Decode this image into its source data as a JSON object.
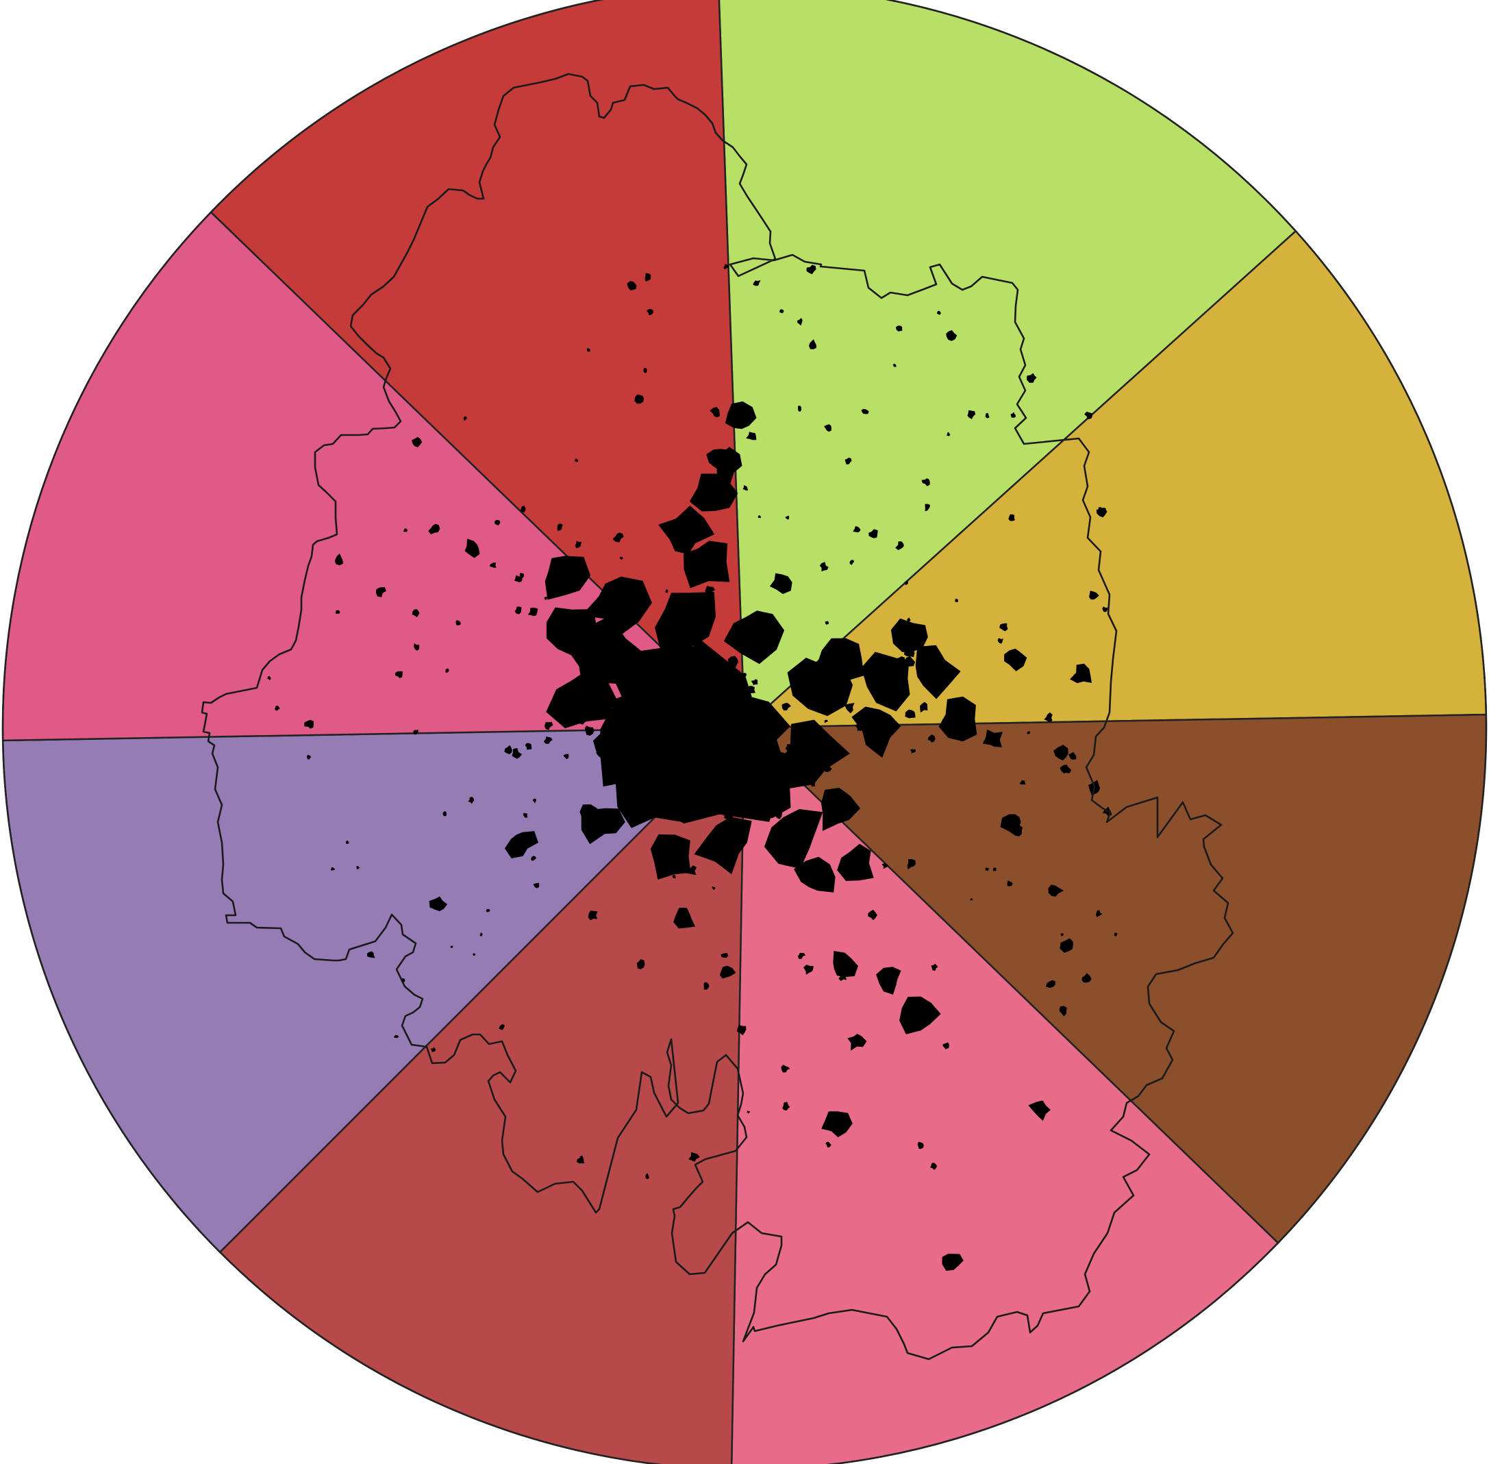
{
  "map": {
    "type": "radial-sector-map",
    "sector_count": 8,
    "sectors": [
      {
        "id": "n",
        "color": "#b9e066"
      },
      {
        "id": "ne",
        "color": "#d4b23c"
      },
      {
        "id": "e",
        "color": "#8b4f2c"
      },
      {
        "id": "se",
        "color": "#e86c89"
      },
      {
        "id": "s",
        "color": "#b8494b"
      },
      {
        "id": "sw",
        "color": "#967cb5"
      },
      {
        "id": "w",
        "color": "#e05a88"
      },
      {
        "id": "nw",
        "color": "#c43b3a"
      }
    ],
    "boundary_color": "#1a1a1a",
    "builtup_color": "#000000",
    "sector_edge_color": "#222222"
  }
}
